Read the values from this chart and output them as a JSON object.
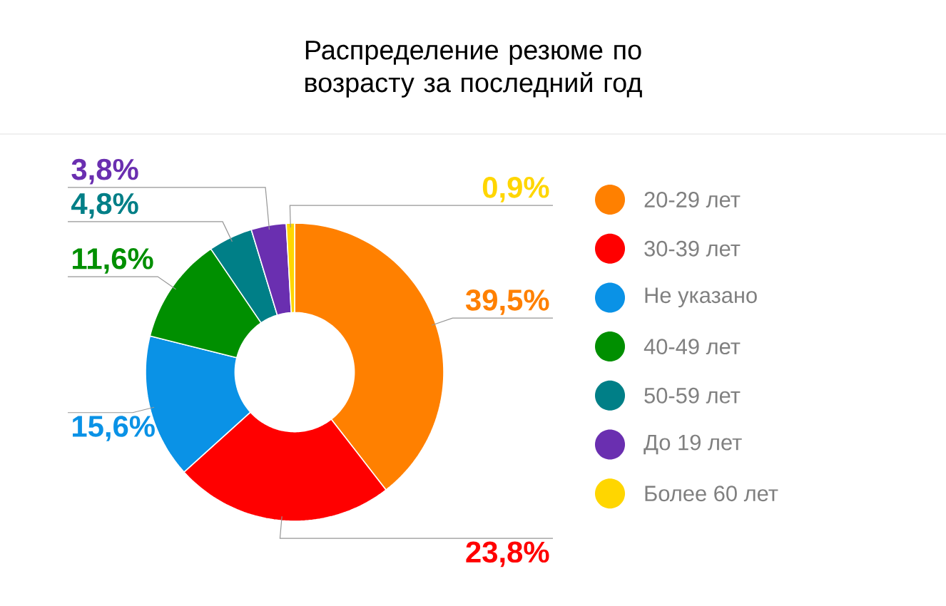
{
  "chart_data": {
    "type": "donut",
    "title": "Распределение резюме по возрасту за последний год",
    "categories": [
      "20-29 лет",
      "30-39 лет",
      "Не указано",
      "40-49 лет",
      "50-59 лет",
      "До 19 лет",
      "Более 60 лет"
    ],
    "values": [
      39.5,
      23.8,
      15.6,
      11.6,
      4.8,
      3.8,
      0.9
    ],
    "colors": [
      "#ff8000",
      "#ff0000",
      "#0a92e6",
      "#008f00",
      "#007f87",
      "#6a2fb0",
      "#ffd600"
    ],
    "value_labels": [
      "39,5%",
      "23,8%",
      "15,6%",
      "11,6%",
      "4,8%",
      "3,8%",
      "0,9%"
    ],
    "legend": "right"
  }
}
